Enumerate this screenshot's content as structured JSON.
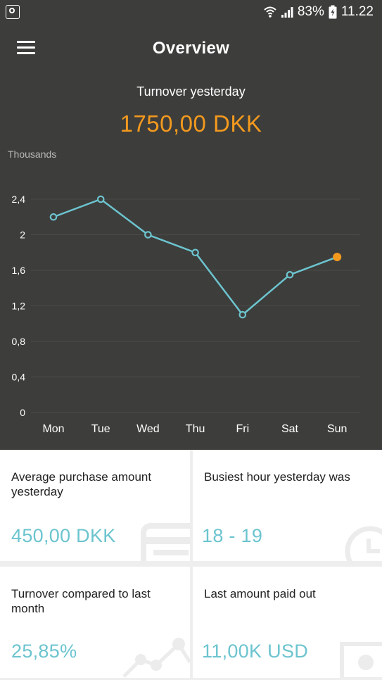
{
  "status_bar": {
    "battery": "83%",
    "time": "11.22"
  },
  "header": {
    "title": "Overview",
    "subtitle": "Turnover yesterday",
    "amount": "1750,00 DKK",
    "units_label": "Thousands"
  },
  "colors": {
    "background": "#3d3d3b",
    "accent": "#f39a1e",
    "line": "#6cc4cf"
  },
  "chart_data": {
    "type": "line",
    "categories": [
      "Mon",
      "Tue",
      "Wed",
      "Thu",
      "Fri",
      "Sat",
      "Sun"
    ],
    "values": [
      2.2,
      2.4,
      2.0,
      1.8,
      1.1,
      1.55,
      1.75
    ],
    "ylabel": "Thousands",
    "yticks": [
      "0",
      "0,4",
      "0,8",
      "1,2",
      "1,6",
      "2",
      "2,4"
    ],
    "ylim": [
      0,
      2.4
    ],
    "highlight_index": 6,
    "grid": true
  },
  "cards": [
    {
      "label": "Average purchase amount yesterday",
      "value": "450,00 DKK",
      "icon": "receipt-icon"
    },
    {
      "label": "Busiest hour yesterday was",
      "value": "18 - 19",
      "icon": "clock-icon"
    },
    {
      "label": "Turnover compared to last month",
      "value": "25,85%",
      "icon": "trend-chart-icon"
    },
    {
      "label": "Last amount paid out",
      "value": "11,00K USD",
      "icon": "banknote-icon"
    }
  ]
}
